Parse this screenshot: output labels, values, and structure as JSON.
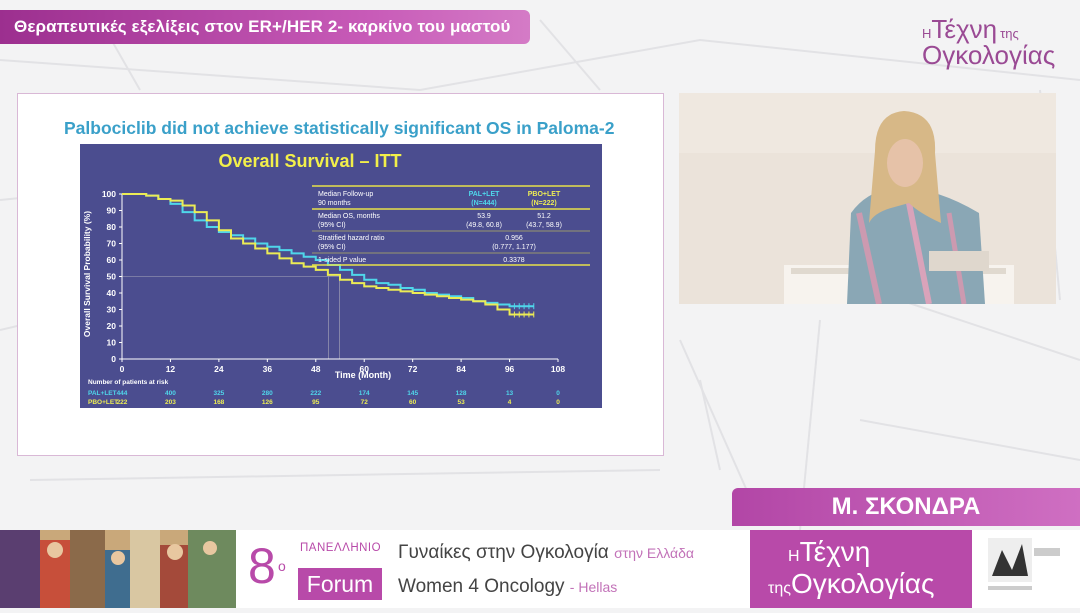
{
  "banner": {
    "title": "Θεραπευτικές εξελίξεις στον ER+/HER 2- καρκίνο του μαστού"
  },
  "logo_top": {
    "h": "Η",
    "word1": "Τέχνη",
    "word2": "της",
    "word3": "Ογκολογίας"
  },
  "slide": {
    "title": "Palbociclib did not achieve statistically significant OS in Paloma-2"
  },
  "chart_data": {
    "type": "line",
    "title": "Overall Survival – ITT",
    "xlabel": "Time (Month)",
    "ylabel": "Overall Survival Probability (%)",
    "xlim": [
      0,
      108
    ],
    "ylim": [
      0,
      100
    ],
    "xticks": [
      0,
      12,
      24,
      36,
      48,
      60,
      72,
      84,
      96,
      108
    ],
    "yticks": [
      0,
      10,
      20,
      30,
      40,
      50,
      60,
      70,
      80,
      90,
      100
    ],
    "series": [
      {
        "name": "PAL+LET",
        "color": "#4fd6ea",
        "x": [
          0,
          3,
          6,
          9,
          12,
          15,
          18,
          21,
          24,
          27,
          30,
          33,
          36,
          39,
          42,
          45,
          48,
          51,
          54,
          57,
          60,
          63,
          66,
          69,
          72,
          75,
          78,
          81,
          84,
          87,
          90,
          93,
          96,
          99,
          102
        ],
        "y": [
          100,
          100,
          99,
          97,
          94,
          89,
          84,
          80,
          77,
          75,
          73,
          70,
          68,
          66,
          64,
          62,
          60,
          57,
          54,
          51,
          48,
          46,
          45,
          43,
          42,
          40,
          39,
          38,
          37,
          35,
          34,
          33,
          32,
          32,
          32
        ]
      },
      {
        "name": "PBO+LET",
        "color": "#ecec55",
        "x": [
          0,
          3,
          6,
          9,
          12,
          15,
          18,
          21,
          24,
          27,
          30,
          33,
          36,
          39,
          42,
          45,
          48,
          51,
          54,
          57,
          60,
          63,
          66,
          69,
          72,
          75,
          78,
          81,
          84,
          87,
          90,
          93,
          96,
          99,
          102
        ],
        "y": [
          100,
          100,
          99,
          97,
          96,
          93,
          89,
          84,
          78,
          73,
          70,
          67,
          64,
          61,
          58,
          56,
          54,
          51,
          48,
          46,
          44,
          43,
          42,
          41,
          40,
          39,
          38,
          37,
          36,
          35,
          33,
          30,
          27,
          27,
          27
        ]
      }
    ],
    "median_lines": [
      53.9,
      51.2
    ],
    "table": {
      "col1": "PAL+LET",
      "col1_n": "(N=444)",
      "col2": "PBO+LET",
      "col2_n": "(N=222)",
      "header_label": "Median Follow-up",
      "header_sub": "90 months",
      "rows": [
        {
          "label": "Median OS, months",
          "sub": "(95% CI)",
          "v1": "53.9",
          "v1sub": "(49.8, 60.8)",
          "v2": "51.2",
          "v2sub": "(43.7, 58.9)"
        },
        {
          "label": "Stratified hazard ratio",
          "sub": "(95% CI)",
          "merged": "0.956",
          "mergedsub": "(0.777, 1.177)"
        },
        {
          "label": "1-sided P value",
          "merged": "0.3378"
        }
      ]
    },
    "at_risk": {
      "label": "Number of patients at risk",
      "rows": [
        {
          "name": "PAL+LET",
          "values": [
            "444",
            "400",
            "325",
            "280",
            "222",
            "174",
            "145",
            "128",
            "13",
            "0"
          ]
        },
        {
          "name": "PBO+LET",
          "values": [
            "222",
            "203",
            "168",
            "126",
            "95",
            "72",
            "60",
            "53",
            "4",
            "0"
          ]
        }
      ]
    }
  },
  "speaker": {
    "name": "Μ. ΣΚΟΝΔΡΑ"
  },
  "footer": {
    "number": "8",
    "ordinal": "ο",
    "pan": "ΠΑΝΕΛΛΗΝΙΟ",
    "forum": "Forum",
    "line1": "Γυναίκες στην Ογκολογία",
    "line1b": "στην Ελλάδα",
    "line2": "Women 4 Oncology",
    "line2b": "- Hellas",
    "logo_h": "Η",
    "logo_word1": "Τέχνη",
    "logo_word2": "της",
    "logo_word3": "Ογκολογίας"
  }
}
